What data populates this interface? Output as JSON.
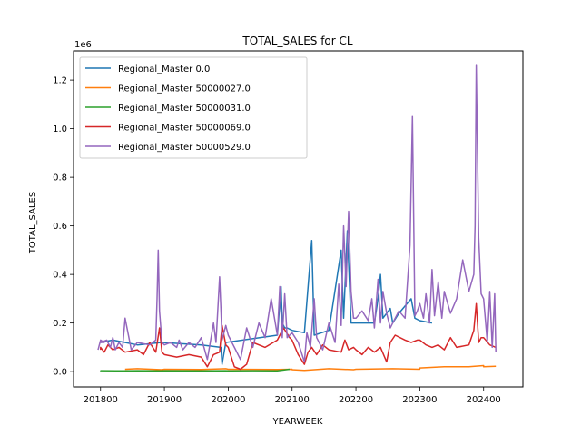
{
  "chart_data": {
    "type": "line",
    "title": "TOTAL_SALES for CL",
    "xlabel": "YEARWEEK",
    "ylabel": "TOTAL_SALES",
    "y_offset_label": "1e6",
    "xlim": [
      201730,
      202432
    ],
    "ylim": [
      -0.063,
      1.32
    ],
    "x_ticks": [
      201800,
      201900,
      202000,
      202100,
      202200,
      202300,
      202400
    ],
    "x_tick_labels": [
      "201800",
      "201900",
      "202000",
      "202100",
      "202200",
      "202300",
      "202400"
    ],
    "y_ticks": [
      0.0,
      0.2,
      0.4,
      0.6,
      0.8,
      1.0,
      1.2
    ],
    "y_tick_labels": [
      "0.0",
      "0.2",
      "0.4",
      "0.6",
      "0.8",
      "1.0",
      "1.2"
    ],
    "grid": false,
    "legend_position": "top-left",
    "series": [
      {
        "name": "Regional_Master 0.0",
        "color": "#1f77b4",
        "x": [
          201752,
          201810,
          201830,
          201850,
          201930,
          201946,
          201947,
          201950,
          202040,
          202043,
          202044,
          202046,
          202048,
          202100,
          202110,
          202116,
          202118,
          202130,
          202140,
          202142,
          202145,
          202148,
          202150,
          202215,
          202218,
          202220,
          202222,
          202228,
          202230,
          202235,
          202245,
          202248,
          202300,
          202310
        ],
        "y": [
          0.12,
          0.13,
          0.11,
          0.12,
          0.11,
          0.1,
          0.03,
          0.12,
          0.15,
          0.35,
          0.2,
          0.18,
          0.18,
          0.17,
          0.16,
          0.54,
          0.15,
          0.17,
          0.5,
          0.22,
          0.58,
          0.2,
          0.2,
          0.2,
          0.3,
          0.4,
          0.22,
          0.26,
          0.2,
          0.24,
          0.3,
          0.22,
          0.21,
          0.2
        ]
      },
      {
        "name": "Regional_Master 50000027.0",
        "color": "#ff7f0e",
        "x": [
          201820,
          201830,
          201850,
          201900,
          201930,
          201950,
          202000,
          202040,
          202052,
          202100,
          202110,
          202130,
          202150,
          202200,
          202230,
          202252,
          202300,
          202320,
          202340,
          202352,
          202400,
          202410
        ],
        "y": [
          0.01,
          0.012,
          0.008,
          0.01,
          0.009,
          0.012,
          0.01,
          0.009,
          0.01,
          0.008,
          0.005,
          0.012,
          0.008,
          0.01,
          0.012,
          0.01,
          0.015,
          0.02,
          0.02,
          0.025,
          0.02,
          0.022
        ]
      },
      {
        "name": "Regional_Master 50000031.0",
        "color": "#2ca02c",
        "x": [
          201752,
          201800,
          201820,
          201830,
          201850,
          201900,
          201930,
          201950,
          202000,
          202020,
          202040,
          202050
        ],
        "y": [
          0.005,
          0.004,
          0.003,
          0.004,
          0.003,
          0.004,
          0.003,
          0.004,
          0.003,
          0.004,
          0.003,
          0.01
        ]
      },
      {
        "name": "Regional_Master 50000069.0",
        "color": "#d62728",
        "x": [
          201752,
          201800,
          201803,
          201806,
          201810,
          201815,
          201820,
          201830,
          201835,
          201840,
          201845,
          201848,
          201850,
          201900,
          201910,
          201920,
          201930,
          201935,
          201940,
          201945,
          201947,
          201950,
          202000,
          202005,
          202010,
          202015,
          202020,
          202030,
          202040,
          202045,
          202050,
          202100,
          202105,
          202110,
          202113,
          202116,
          202120,
          202125,
          202130,
          202140,
          202143,
          202146,
          202150,
          202200,
          202205,
          202210,
          202215,
          202220,
          202225,
          202228,
          202232,
          202240,
          202245,
          202250,
          202300,
          202305,
          202310,
          202315,
          202320,
          202325,
          202330,
          202340,
          202344,
          202346,
          202348,
          202350,
          202400,
          202405,
          202410
        ],
        "y": [
          0.09,
          0.1,
          0.08,
          0.11,
          0.09,
          0.1,
          0.08,
          0.09,
          0.07,
          0.12,
          0.08,
          0.18,
          0.08,
          0.07,
          0.06,
          0.07,
          0.06,
          0.02,
          0.07,
          0.08,
          0.19,
          0.11,
          0.1,
          0.02,
          0.01,
          0.03,
          0.12,
          0.1,
          0.13,
          0.18,
          0.14,
          0.13,
          0.07,
          0.03,
          0.08,
          0.1,
          0.07,
          0.11,
          0.09,
          0.08,
          0.13,
          0.09,
          0.1,
          0.09,
          0.07,
          0.1,
          0.08,
          0.1,
          0.04,
          0.12,
          0.15,
          0.13,
          0.12,
          0.13,
          0.13,
          0.11,
          0.1,
          0.11,
          0.09,
          0.14,
          0.1,
          0.11,
          0.17,
          0.28,
          0.12,
          0.14,
          0.14,
          0.11,
          0.1
        ]
      },
      {
        "name": "Regional_Master 50000529.0",
        "color": "#9467bd",
        "x": [
          201750,
          201752,
          201755,
          201800,
          201805,
          201808,
          201810,
          201812,
          201815,
          201818,
          201820,
          201825,
          201830,
          201840,
          201845,
          201846,
          201847,
          201848,
          201850,
          201900,
          201905,
          201910,
          201912,
          201915,
          201920,
          201925,
          201930,
          201935,
          201940,
          201942,
          201945,
          201946,
          201947,
          201950,
          202000,
          202005,
          202010,
          202015,
          202020,
          202025,
          202030,
          202035,
          202040,
          202042,
          202044,
          202046,
          202048,
          202050,
          202100,
          202105,
          202110,
          202112,
          202115,
          202118,
          202120,
          202125,
          202130,
          202135,
          202138,
          202140,
          202142,
          202144,
          202146,
          202148,
          202150,
          202200,
          202205,
          202210,
          202213,
          202215,
          202218,
          202220,
          202222,
          202225,
          202228,
          202230,
          202235,
          202240,
          202244,
          202246,
          202248,
          202250,
          202300,
          202303,
          202305,
          202308,
          202310,
          202312,
          202315,
          202318,
          202320,
          202325,
          202330,
          202335,
          202340,
          202344,
          202345,
          202346,
          202348,
          202350,
          202400,
          202403,
          202405,
          202407,
          202409,
          202410
        ],
        "y": [
          0.09,
          0.13,
          0.12,
          0.12,
          0.13,
          0.1,
          0.14,
          0.09,
          0.12,
          0.1,
          0.22,
          0.09,
          0.12,
          0.11,
          0.13,
          0.3,
          0.5,
          0.25,
          0.12,
          0.11,
          0.12,
          0.1,
          0.13,
          0.09,
          0.12,
          0.1,
          0.14,
          0.05,
          0.2,
          0.12,
          0.39,
          0.26,
          0.13,
          0.19,
          0.15,
          0.1,
          0.05,
          0.18,
          0.1,
          0.2,
          0.14,
          0.3,
          0.15,
          0.35,
          0.14,
          0.32,
          0.14,
          0.15,
          0.16,
          0.12,
          0.04,
          0.16,
          0.1,
          0.3,
          0.14,
          0.09,
          0.2,
          0.12,
          0.36,
          0.19,
          0.6,
          0.35,
          0.66,
          0.33,
          0.22,
          0.22,
          0.25,
          0.21,
          0.3,
          0.18,
          0.38,
          0.2,
          0.33,
          0.24,
          0.18,
          0.2,
          0.25,
          0.22,
          0.52,
          1.05,
          0.23,
          0.25,
          0.28,
          0.22,
          0.32,
          0.2,
          0.42,
          0.23,
          0.37,
          0.22,
          0.33,
          0.24,
          0.3,
          0.46,
          0.33,
          0.4,
          0.6,
          1.26,
          0.55,
          0.32,
          0.3,
          0.12,
          0.33,
          0.1,
          0.32,
          0.08
        ]
      }
    ]
  }
}
